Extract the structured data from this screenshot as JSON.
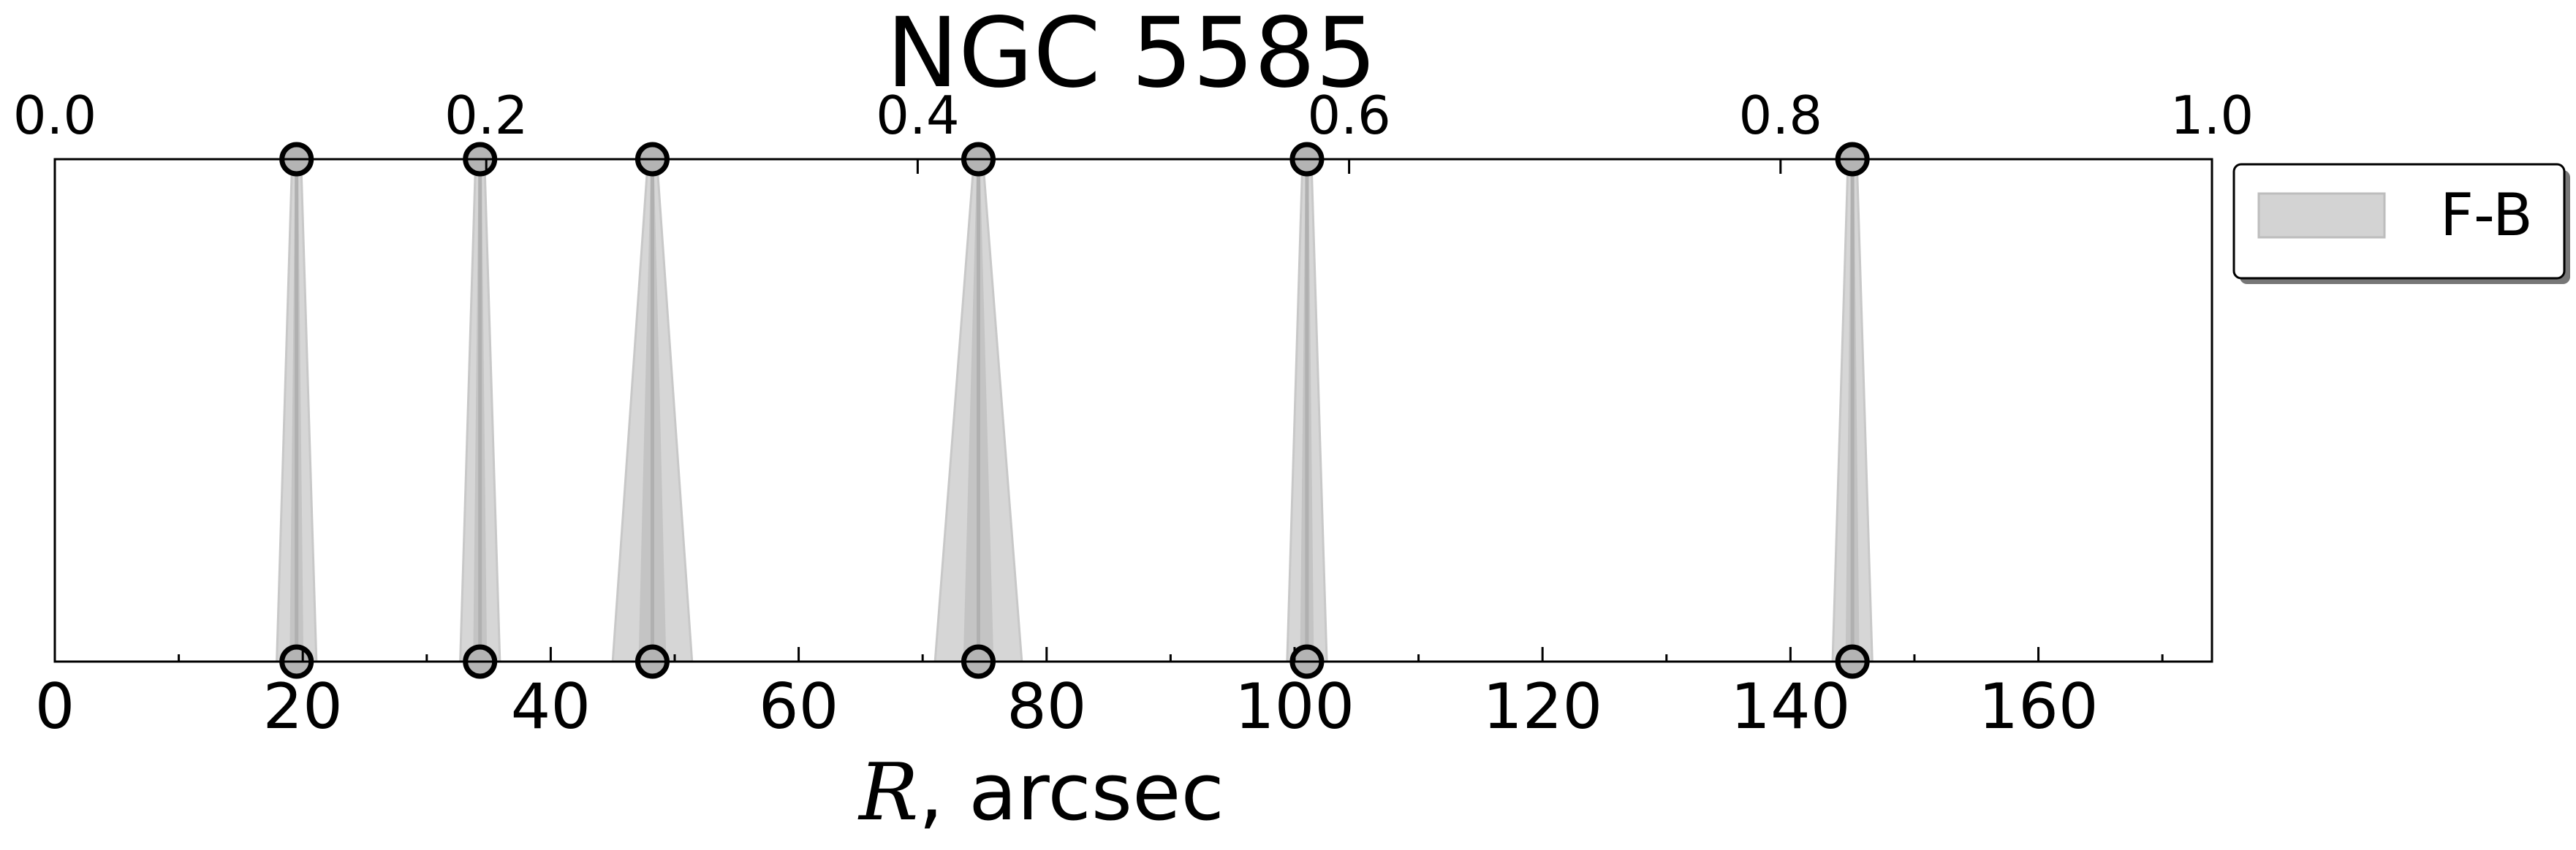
{
  "chart_data": {
    "type": "area",
    "title": "NGC 5585",
    "xlabel_symbol": "R",
    "xlabel_rest": ", arcsec",
    "xlim": [
      0,
      174
    ],
    "x_ticks": [
      0,
      20,
      40,
      60,
      80,
      100,
      120,
      140,
      160
    ],
    "top_axis_ticks": [
      0.0,
      0.2,
      0.4,
      0.6,
      0.8,
      1.0
    ],
    "top_axis_tick_labels": [
      "0.0",
      "0.2",
      "0.4",
      "0.6",
      "0.8",
      "1.0"
    ],
    "grid": false,
    "legend": {
      "position": "outside-right",
      "entries": [
        "F-B"
      ]
    },
    "series": [
      {
        "name": "F-B",
        "color": "#c8c8c8",
        "peaks": [
          {
            "x": 19.5,
            "halfwidth": 1.6
          },
          {
            "x": 34.3,
            "halfwidth": 1.6
          },
          {
            "x": 48.2,
            "halfwidth": 3.2
          },
          {
            "x": 74.5,
            "halfwidth": 3.5
          },
          {
            "x": 101.0,
            "halfwidth": 1.6
          },
          {
            "x": 145.0,
            "halfwidth": 1.6
          }
        ]
      }
    ],
    "markers": [
      19.5,
      34.3,
      48.2,
      74.5,
      101.0,
      145.0
    ]
  }
}
